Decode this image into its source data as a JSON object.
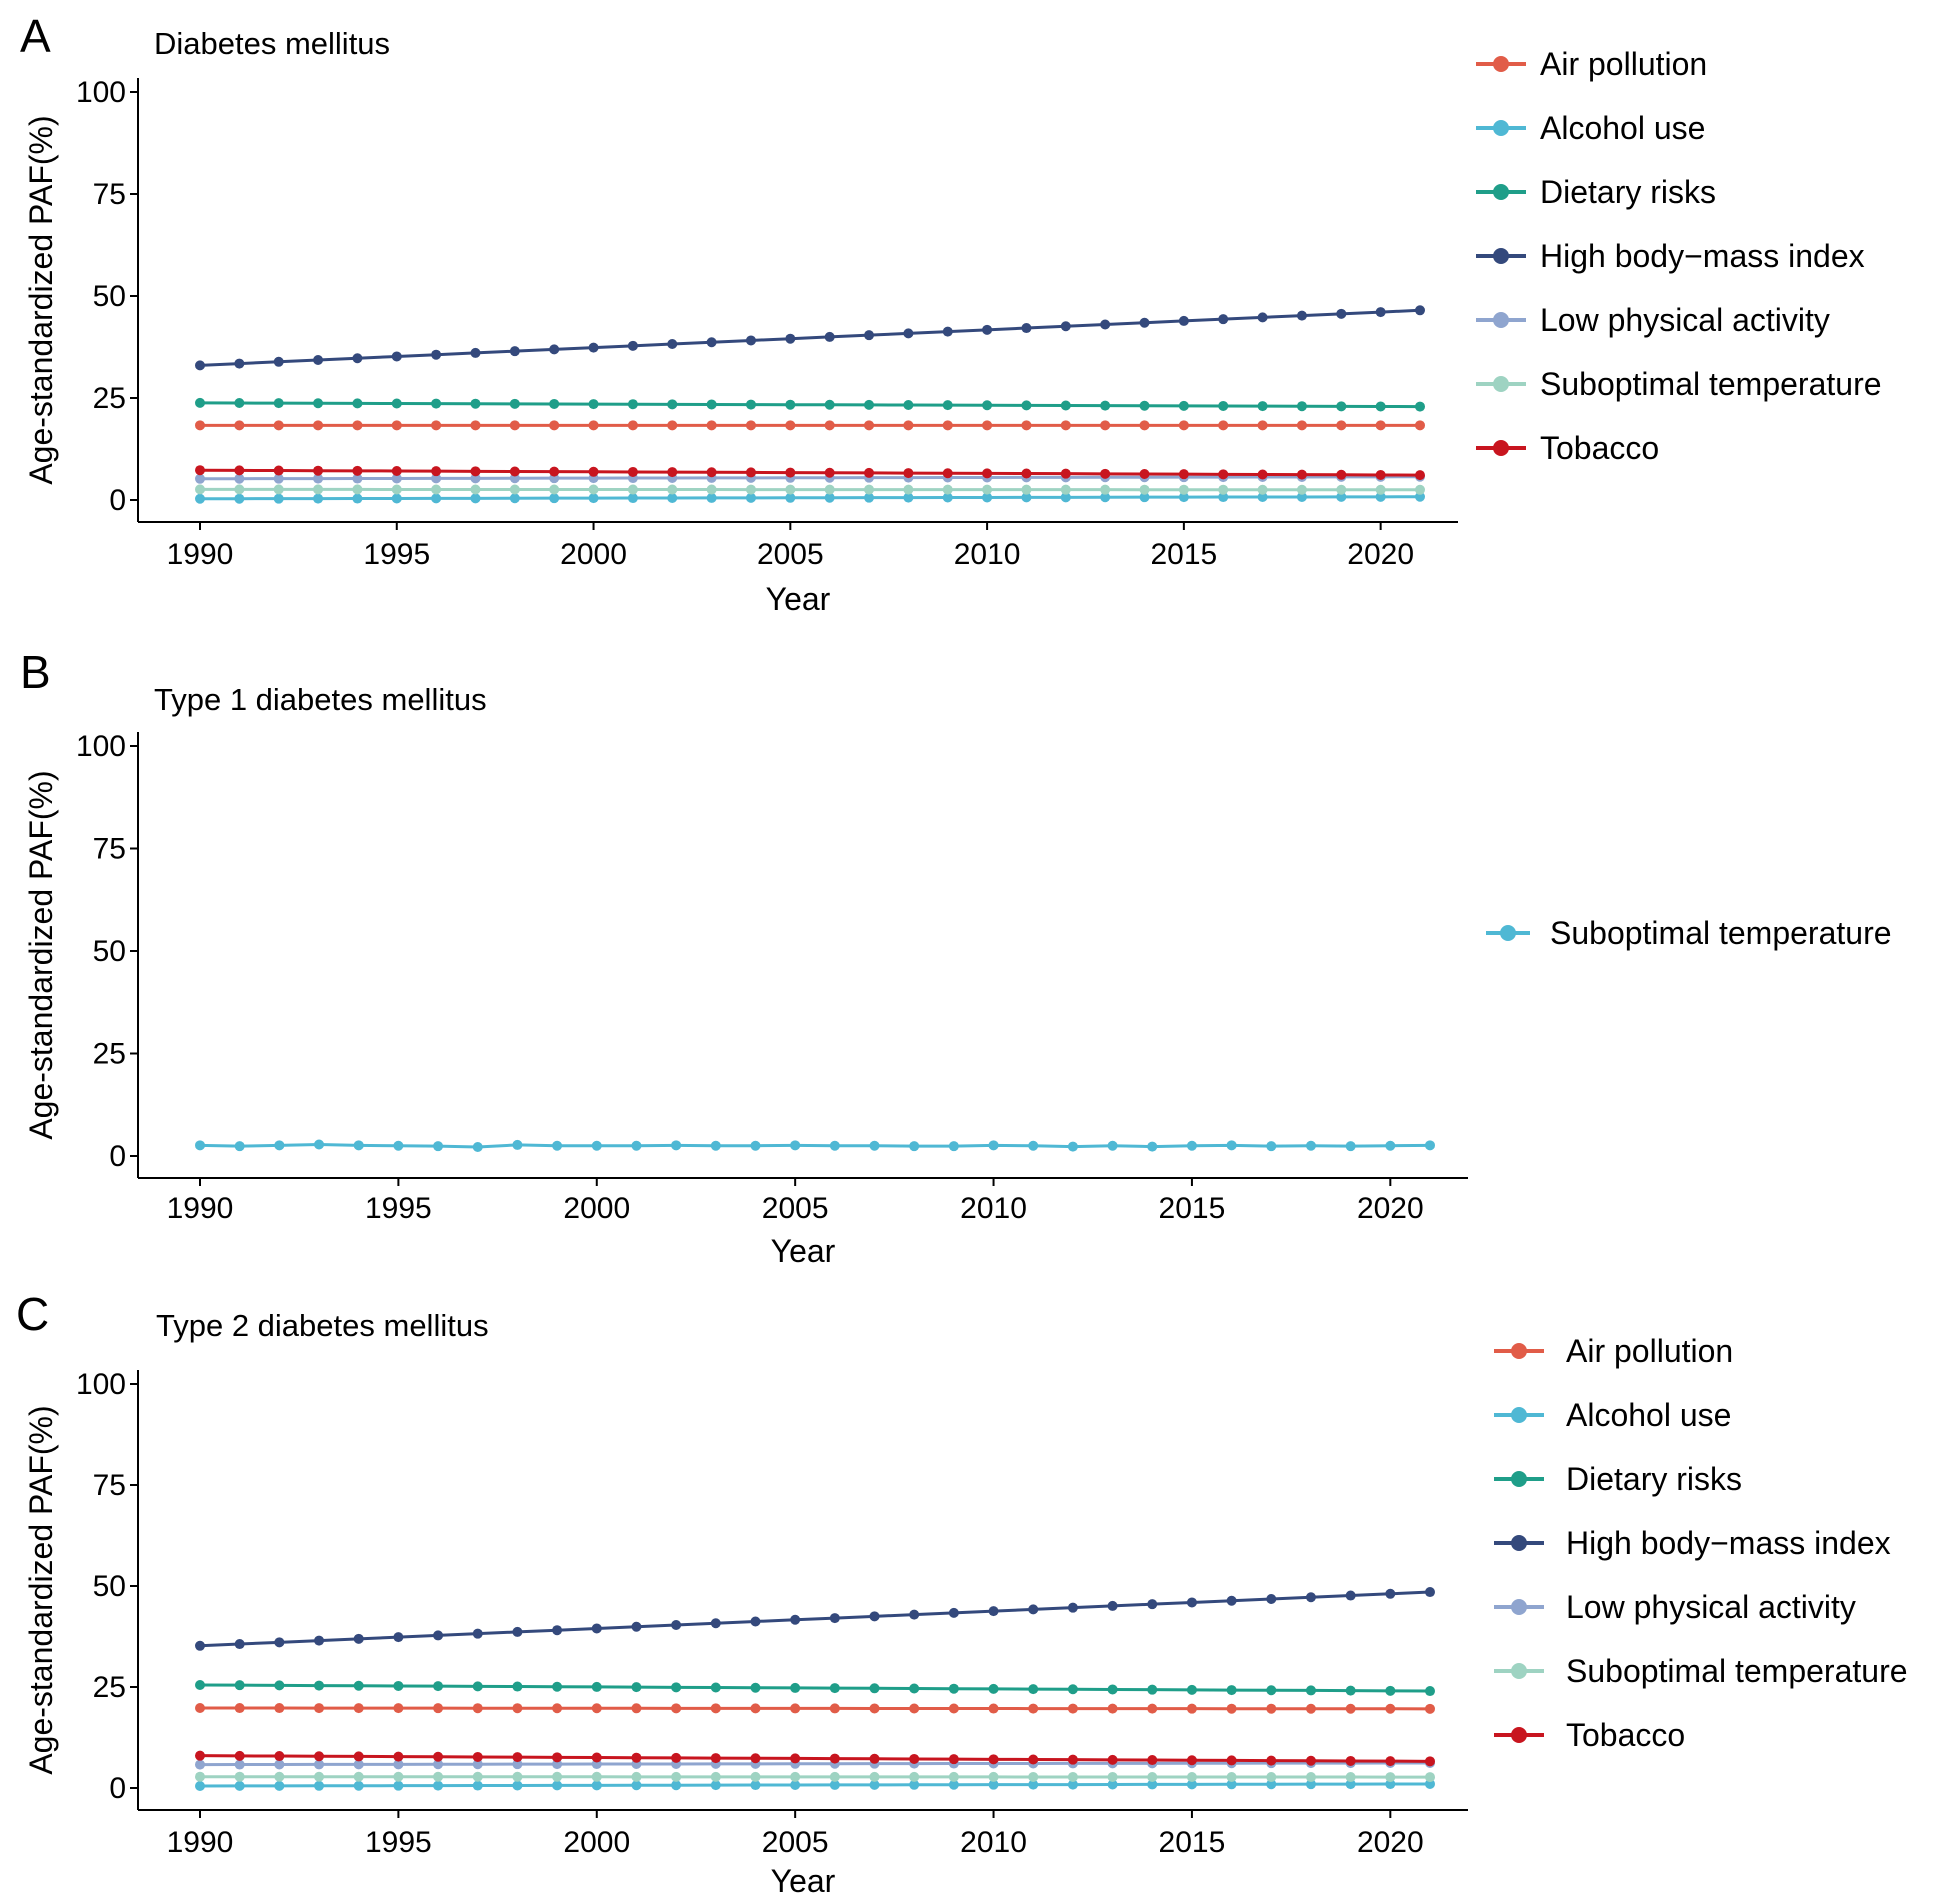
{
  "chart_data": [
    {
      "type": "line",
      "panel": "A",
      "title": "Diabetes mellitus",
      "xlabel": "Year",
      "ylabel": "Age-standardized PAF(%)",
      "xlim": [
        1990,
        2021
      ],
      "ylim": [
        0,
        100
      ],
      "xticks": [
        1990,
        1995,
        2000,
        2005,
        2010,
        2015,
        2020
      ],
      "yticks": [
        0,
        25,
        50,
        75,
        100
      ],
      "grid": false,
      "legend_position": "right",
      "x_start": 1990,
      "x_step": 1,
      "series": [
        {
          "name": "Air pollution",
          "color": "#e15c48",
          "start": 18.3,
          "end": 18.3
        },
        {
          "name": "Alcohol use",
          "color": "#4fb8d4",
          "start": 0.3,
          "end": 0.8
        },
        {
          "name": "Dietary risks",
          "color": "#1f9e89",
          "start": 23.8,
          "end": 22.9
        },
        {
          "name": "High body−mass index",
          "color": "#34497c",
          "start": 33.0,
          "end": 46.5
        },
        {
          "name": "Low physical activity",
          "color": "#8fa5cf",
          "start": 5.2,
          "end": 5.7
        },
        {
          "name": "Suboptimal temperature",
          "color": "#9ed3c2",
          "start": 2.6,
          "end": 2.5
        },
        {
          "name": "Tobacco",
          "color": "#c8151f",
          "start": 7.3,
          "end": 6.1
        }
      ]
    },
    {
      "type": "line",
      "panel": "B",
      "title": "Type 1 diabetes mellitus",
      "xlabel": "Year",
      "ylabel": "Age-standardized PAF(%)",
      "xlim": [
        1990,
        2021
      ],
      "ylim": [
        0,
        100
      ],
      "xticks": [
        1990,
        1995,
        2000,
        2005,
        2010,
        2015,
        2020
      ],
      "yticks": [
        0,
        25,
        50,
        75,
        100
      ],
      "grid": false,
      "legend_position": "right",
      "x_start": 1990,
      "x_step": 1,
      "series": [
        {
          "name": "Suboptimal temperature",
          "color": "#4fb8d4",
          "values": [
            2.6,
            2.4,
            2.6,
            2.8,
            2.6,
            2.5,
            2.4,
            2.2,
            2.7,
            2.5,
            2.5,
            2.5,
            2.6,
            2.5,
            2.5,
            2.6,
            2.5,
            2.5,
            2.4,
            2.4,
            2.6,
            2.5,
            2.3,
            2.5,
            2.3,
            2.5,
            2.6,
            2.4,
            2.5,
            2.4,
            2.5,
            2.6
          ]
        }
      ]
    },
    {
      "type": "line",
      "panel": "C",
      "title": "Type 2 diabetes mellitus",
      "xlabel": "Year",
      "ylabel": "Age-standardized PAF(%)",
      "xlim": [
        1990,
        2021
      ],
      "ylim": [
        0,
        100
      ],
      "xticks": [
        1990,
        1995,
        2000,
        2005,
        2010,
        2015,
        2020
      ],
      "yticks": [
        0,
        25,
        50,
        75,
        100
      ],
      "grid": false,
      "legend_position": "right",
      "x_start": 1990,
      "x_step": 1,
      "series": [
        {
          "name": "Air pollution",
          "color": "#e15c48",
          "start": 19.8,
          "end": 19.6
        },
        {
          "name": "Alcohol use",
          "color": "#4fb8d4",
          "start": 0.5,
          "end": 1.0
        },
        {
          "name": "Dietary risks",
          "color": "#1f9e89",
          "start": 25.5,
          "end": 24.0
        },
        {
          "name": "High body−mass index",
          "color": "#34497c",
          "start": 35.2,
          "end": 48.5
        },
        {
          "name": "Low physical activity",
          "color": "#8fa5cf",
          "start": 5.8,
          "end": 6.2
        },
        {
          "name": "Suboptimal temperature",
          "color": "#9ed3c2",
          "start": 2.8,
          "end": 2.7
        },
        {
          "name": "Tobacco",
          "color": "#c8151f",
          "start": 8.0,
          "end": 6.6
        }
      ]
    }
  ]
}
